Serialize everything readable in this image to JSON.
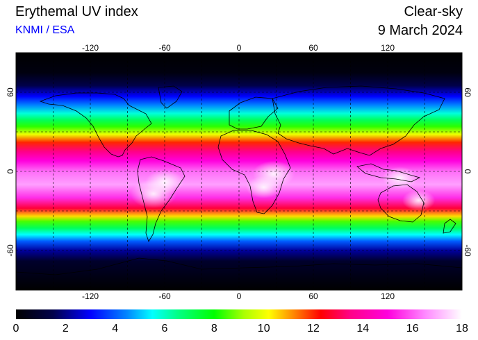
{
  "header": {
    "title": "Erythemal UV index",
    "credit": "KNMI / ESA",
    "mode": "Clear-sky",
    "date": "9 March 2024"
  },
  "map": {
    "lon_range": [
      -180,
      180
    ],
    "lat_range": [
      -90,
      90
    ],
    "lon_ticks": [
      "-120",
      "-60",
      "0",
      "60",
      "120"
    ],
    "lat_ticks_left": [
      "60",
      "0",
      "-60"
    ],
    "lat_ticks_right": [
      "60",
      "0",
      "-60"
    ],
    "grid": "dashed 30-degree graticule",
    "projection": "equirectangular"
  },
  "colorbar": {
    "min": 0,
    "max": 18,
    "labels": [
      "0",
      "2",
      "4",
      "6",
      "8",
      "10",
      "12",
      "14",
      "16",
      "18"
    ],
    "stops": [
      {
        "v": 0,
        "c": "#000000"
      },
      {
        "v": 1.5,
        "c": "#00004a"
      },
      {
        "v": 3,
        "c": "#0000ff"
      },
      {
        "v": 4.5,
        "c": "#0088ff"
      },
      {
        "v": 5.5,
        "c": "#00ffff"
      },
      {
        "v": 6.5,
        "c": "#00ff88"
      },
      {
        "v": 8,
        "c": "#00ff00"
      },
      {
        "v": 9.2,
        "c": "#aaff00"
      },
      {
        "v": 10.2,
        "c": "#ffff00"
      },
      {
        "v": 11.2,
        "c": "#ff8800"
      },
      {
        "v": 12.3,
        "c": "#ff0000"
      },
      {
        "v": 13.5,
        "c": "#ff0088"
      },
      {
        "v": 15,
        "c": "#ff00dd"
      },
      {
        "v": 16.5,
        "c": "#ff88ff"
      },
      {
        "v": 18,
        "c": "#ffffff"
      }
    ]
  },
  "uv_profile": [
    {
      "lat": 90,
      "uv": 0
    },
    {
      "lat": 75,
      "uv": 0.3
    },
    {
      "lat": 65,
      "uv": 1.5
    },
    {
      "lat": 57,
      "uv": 3
    },
    {
      "lat": 50,
      "uv": 4.5
    },
    {
      "lat": 44,
      "uv": 5.8
    },
    {
      "lat": 39,
      "uv": 7
    },
    {
      "lat": 34,
      "uv": 8.3
    },
    {
      "lat": 28,
      "uv": 10
    },
    {
      "lat": 22,
      "uv": 12
    },
    {
      "lat": 15,
      "uv": 13.5
    },
    {
      "lat": 8,
      "uv": 15
    },
    {
      "lat": 0,
      "uv": 16.2
    },
    {
      "lat": -10,
      "uv": 16.8
    },
    {
      "lat": -20,
      "uv": 15.5
    },
    {
      "lat": -28,
      "uv": 12.8
    },
    {
      "lat": -34,
      "uv": 10.5
    },
    {
      "lat": -38,
      "uv": 8.5
    },
    {
      "lat": -43,
      "uv": 7
    },
    {
      "lat": -48,
      "uv": 5.5
    },
    {
      "lat": -53,
      "uv": 4
    },
    {
      "lat": -60,
      "uv": 2.2
    },
    {
      "lat": -68,
      "uv": 0.9
    },
    {
      "lat": -90,
      "uv": 0
    }
  ],
  "hotspots": [
    {
      "lon": -69,
      "lat": -17,
      "uv": 17.8
    },
    {
      "lon": -60,
      "lat": -8,
      "uv": 17.2
    },
    {
      "lon": 28,
      "lat": -2,
      "uv": 17.5
    },
    {
      "lon": 20,
      "lat": -12,
      "uv": 17
    },
    {
      "lon": 130,
      "lat": -5,
      "uv": 17
    },
    {
      "lon": 145,
      "lat": -22,
      "uv": 16.8
    }
  ]
}
